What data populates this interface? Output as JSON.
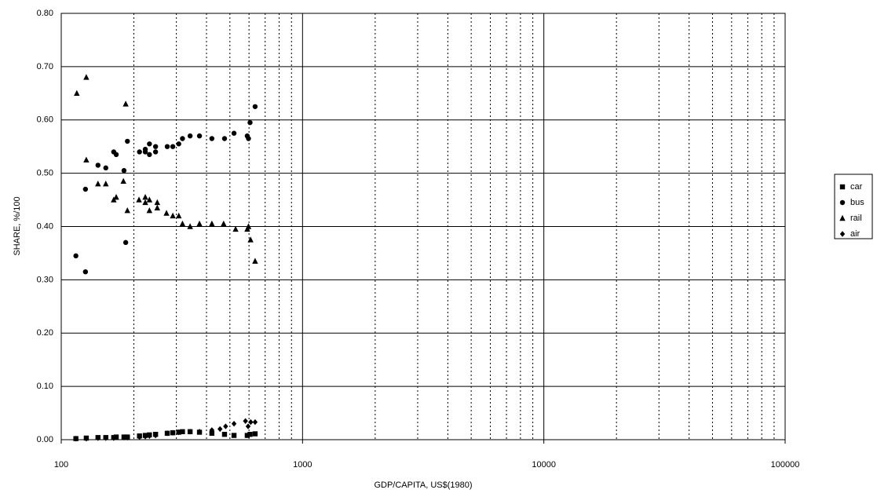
{
  "chart_data": {
    "type": "scatter",
    "xlabel": "GDP/CAPITA, US$(1980)",
    "ylabel": "SHARE, %/100",
    "xscale": "log",
    "xlim": [
      100,
      100000
    ],
    "xticks": [
      100,
      1000,
      10000,
      100000
    ],
    "x_minor_gridlines": [
      200,
      300,
      400,
      500,
      600,
      700,
      800,
      900,
      2000,
      3000,
      4000,
      5000,
      6000,
      7000,
      8000,
      9000,
      20000,
      30000,
      40000,
      50000,
      60000,
      70000,
      80000,
      90000
    ],
    "ylim": [
      0,
      0.8
    ],
    "yticks": [
      {
        "value": 0,
        "label": "0.00"
      },
      {
        "value": 0.1,
        "label": "0.10"
      },
      {
        "value": 0.2,
        "label": "0.20"
      },
      {
        "value": 0.3,
        "label": "0.30"
      },
      {
        "value": 0.4,
        "label": "0.40"
      },
      {
        "value": 0.5,
        "label": "0.50"
      },
      {
        "value": 0.6,
        "label": "0.60"
      },
      {
        "value": 0.7,
        "label": "0.70"
      },
      {
        "value": 0.8,
        "label": "0.80"
      }
    ],
    "grid": true,
    "legend": "right",
    "series": [
      {
        "name": "car",
        "color": "#000000",
        "marker": "square",
        "x": [
          115,
          127,
          142,
          153,
          165,
          169,
          182,
          188,
          211,
          223,
          232,
          246,
          275,
          290,
          307,
          318,
          342,
          374,
          421,
          475,
          520,
          590,
          606,
          636
        ],
        "values": [
          0.002,
          0.003,
          0.004,
          0.004,
          0.004,
          0.005,
          0.005,
          0.005,
          0.007,
          0.008,
          0.009,
          0.01,
          0.012,
          0.013,
          0.014,
          0.015,
          0.015,
          0.014,
          0.012,
          0.01,
          0.008,
          0.008,
          0.01,
          0.011
        ]
      },
      {
        "name": "bus",
        "color": "#000000",
        "marker": "circle",
        "x": [
          115,
          126,
          126,
          142,
          153,
          165,
          169,
          182,
          185,
          188,
          211,
          223,
          223,
          232,
          232,
          246,
          246,
          275,
          290,
          307,
          318,
          342,
          374,
          421,
          475,
          520,
          590,
          597,
          606,
          636
        ],
        "values": [
          0.345,
          0.315,
          0.47,
          0.515,
          0.51,
          0.54,
          0.535,
          0.505,
          0.37,
          0.56,
          0.54,
          0.54,
          0.545,
          0.555,
          0.535,
          0.54,
          0.55,
          0.55,
          0.55,
          0.555,
          0.565,
          0.57,
          0.57,
          0.565,
          0.565,
          0.575,
          0.57,
          0.565,
          0.595,
          0.625
        ]
      },
      {
        "name": "rail",
        "color": "#000000",
        "marker": "triangle",
        "x": [
          116,
          127,
          127,
          142,
          153,
          165,
          169,
          181,
          185,
          188,
          210,
          223,
          223,
          232,
          232,
          250,
          250,
          273,
          290,
          307,
          318,
          342,
          374,
          421,
          471,
          528,
          590,
          597,
          609,
          636
        ],
        "values": [
          0.65,
          0.68,
          0.525,
          0.48,
          0.48,
          0.45,
          0.455,
          0.485,
          0.63,
          0.43,
          0.45,
          0.455,
          0.445,
          0.43,
          0.45,
          0.435,
          0.445,
          0.425,
          0.42,
          0.42,
          0.405,
          0.4,
          0.405,
          0.405,
          0.405,
          0.395,
          0.395,
          0.4,
          0.375,
          0.335
        ]
      },
      {
        "name": "air",
        "color": "#000000",
        "marker": "diamond",
        "x": [
          115,
          127,
          142,
          153,
          165,
          182,
          188,
          211,
          223,
          232,
          246,
          275,
          290,
          307,
          342,
          374,
          421,
          455,
          480,
          520,
          580,
          595,
          610,
          636
        ],
        "values": [
          0.002,
          0.002,
          0.003,
          0.003,
          0.003,
          0.004,
          0.004,
          0.005,
          0.006,
          0.007,
          0.008,
          0.012,
          0.013,
          0.014,
          0.015,
          0.015,
          0.018,
          0.02,
          0.025,
          0.03,
          0.035,
          0.025,
          0.033,
          0.033
        ]
      }
    ]
  }
}
